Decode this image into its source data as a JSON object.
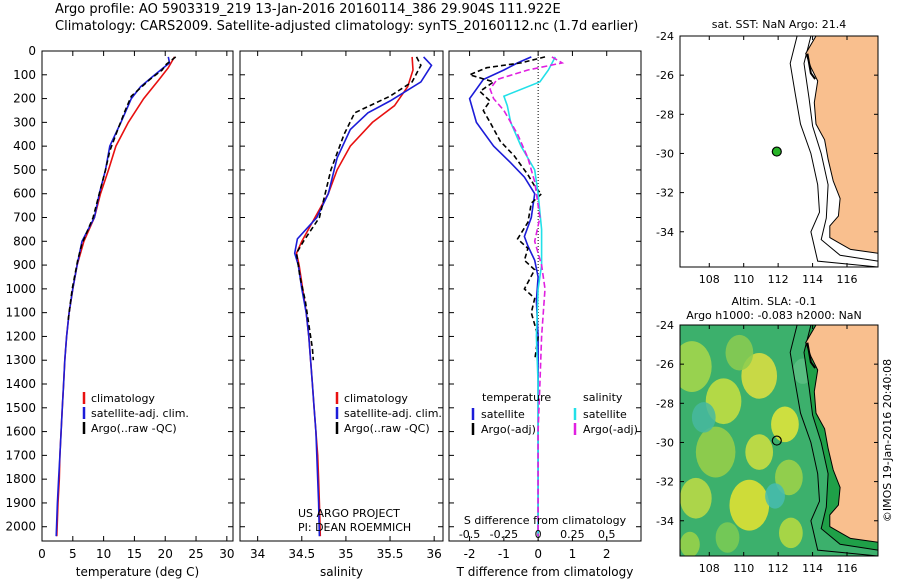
{
  "header": {
    "line1": "Argo profile: AO 5903319_219 13-Jan-2016 20160114_386 29.904S 111.922E",
    "line2": "Climatology: CARS2009. Satellite-adjusted climatology: synTS_20160112.nc (1.7d earlier)"
  },
  "colors": {
    "climatology": "#e81010",
    "satellite": "#1c1cd8",
    "argo": "#000000",
    "sal_sat": "#22e0e8",
    "sal_argo": "#e020e0",
    "land": "#f9bf8e",
    "float": "#28b428"
  },
  "chart_data": [
    {
      "type": "line",
      "panel": "temperature",
      "xlabel": "temperature (deg C)",
      "xlim": [
        0,
        31
      ],
      "xticks": [
        0,
        5,
        10,
        15,
        20,
        25,
        30
      ],
      "ylim": [
        0,
        2060
      ],
      "yticks": [
        0,
        100,
        200,
        300,
        400,
        500,
        600,
        700,
        800,
        900,
        1000,
        1100,
        1200,
        1300,
        1400,
        1500,
        1600,
        1700,
        1800,
        1900,
        2000
      ],
      "legend": [
        "climatology",
        "satellite-adj. clim.",
        "Argo(..raw -QC)"
      ],
      "series": [
        {
          "name": "climatology",
          "color": "#e81010",
          "dash": "",
          "points": [
            [
              21.5,
              25
            ],
            [
              20.5,
              70
            ],
            [
              19,
              120
            ],
            [
              16.5,
              200
            ],
            [
              14,
              300
            ],
            [
              12,
              400
            ],
            [
              10.8,
              500
            ],
            [
              9.5,
              600
            ],
            [
              8.5,
              700
            ],
            [
              6.8,
              800
            ],
            [
              5.7,
              900
            ],
            [
              5,
              1000
            ],
            [
              4.4,
              1100
            ],
            [
              4,
              1200
            ],
            [
              3.7,
              1300
            ],
            [
              3.5,
              1400
            ],
            [
              3.3,
              1500
            ],
            [
              3.1,
              1600
            ],
            [
              2.9,
              1700
            ],
            [
              2.8,
              1800
            ],
            [
              2.6,
              1900
            ],
            [
              2.4,
              2040
            ]
          ]
        },
        {
          "name": "satellite-adj. clim.",
          "color": "#1c1cd8",
          "dash": "",
          "points": [
            [
              20.5,
              25
            ],
            [
              20.7,
              50
            ],
            [
              18.3,
              100
            ],
            [
              16,
              150
            ],
            [
              14.5,
              200
            ],
            [
              12.8,
              300
            ],
            [
              11,
              400
            ],
            [
              10.3,
              500
            ],
            [
              9.3,
              600
            ],
            [
              8.5,
              700
            ],
            [
              6.5,
              800
            ],
            [
              5.7,
              900
            ],
            [
              5,
              1000
            ],
            [
              4.4,
              1100
            ],
            [
              4,
              1200
            ],
            [
              3.7,
              1300
            ],
            [
              3.5,
              1400
            ],
            [
              3.3,
              1500
            ],
            [
              3.1,
              1600
            ],
            [
              2.9,
              1700
            ],
            [
              2.7,
              1800
            ],
            [
              2.5,
              1900
            ],
            [
              2.3,
              2040
            ]
          ]
        },
        {
          "name": "Argo(..raw -QC)",
          "color": "#000000",
          "dash": "5,3",
          "points": [
            [
              21.7,
              25
            ],
            [
              20.2,
              55
            ],
            [
              19.5,
              80
            ],
            [
              17.5,
              120
            ],
            [
              14.5,
              190
            ],
            [
              13.5,
              250
            ],
            [
              12.3,
              330
            ],
            [
              11,
              420
            ],
            [
              10.3,
              500
            ],
            [
              9.3,
              600
            ],
            [
              8.3,
              700
            ],
            [
              6.5,
              810
            ],
            [
              5.8,
              880
            ],
            [
              4.9,
              1000
            ],
            [
              4.2,
              1140
            ]
          ]
        }
      ]
    },
    {
      "type": "line",
      "panel": "salinity",
      "xlabel": "salinity",
      "xlim": [
        33.8,
        36.1
      ],
      "xticks": [
        34,
        34.5,
        35,
        35.5,
        36
      ],
      "ylim": [
        0,
        2060
      ],
      "legend": [
        "climatology",
        "satellite-adj. clim.",
        "Argo(..raw -QC)"
      ],
      "annotation": [
        "US ARGO PROJECT",
        "PI: DEAN ROEMMICH"
      ],
      "series": [
        {
          "name": "climatology",
          "color": "#e81010",
          "dash": "",
          "points": [
            [
              35.75,
              25
            ],
            [
              35.76,
              80
            ],
            [
              35.7,
              150
            ],
            [
              35.55,
              230
            ],
            [
              35.3,
              300
            ],
            [
              35.05,
              400
            ],
            [
              34.9,
              500
            ],
            [
              34.8,
              600
            ],
            [
              34.65,
              700
            ],
            [
              34.5,
              800
            ],
            [
              34.44,
              850
            ],
            [
              34.47,
              900
            ],
            [
              34.51,
              1000
            ],
            [
              34.55,
              1100
            ],
            [
              34.58,
              1200
            ],
            [
              34.6,
              1300
            ],
            [
              34.62,
              1400
            ],
            [
              34.64,
              1500
            ],
            [
              34.66,
              1600
            ],
            [
              34.68,
              1700
            ],
            [
              34.69,
              1800
            ],
            [
              34.7,
              1900
            ],
            [
              34.71,
              2040
            ]
          ]
        },
        {
          "name": "satellite-adj. clim.",
          "color": "#1c1cd8",
          "dash": "",
          "points": [
            [
              35.88,
              25
            ],
            [
              35.97,
              60
            ],
            [
              35.85,
              130
            ],
            [
              35.5,
              210
            ],
            [
              35.25,
              260
            ],
            [
              35.05,
              330
            ],
            [
              34.9,
              450
            ],
            [
              34.8,
              600
            ],
            [
              34.67,
              700
            ],
            [
              34.45,
              790
            ],
            [
              34.42,
              850
            ],
            [
              34.46,
              900
            ],
            [
              34.5,
              1000
            ],
            [
              34.55,
              1100
            ],
            [
              34.58,
              1200
            ],
            [
              34.6,
              1300
            ],
            [
              34.62,
              1400
            ],
            [
              34.64,
              1500
            ],
            [
              34.66,
              1600
            ],
            [
              34.67,
              1700
            ],
            [
              34.68,
              1800
            ],
            [
              34.69,
              1900
            ],
            [
              34.7,
              2040
            ]
          ]
        },
        {
          "name": "Argo(..raw -QC)",
          "color": "#000000",
          "dash": "5,3",
          "points": [
            [
              35.8,
              25
            ],
            [
              35.85,
              60
            ],
            [
              35.75,
              130
            ],
            [
              35.5,
              190
            ],
            [
              35.1,
              260
            ],
            [
              34.98,
              350
            ],
            [
              34.88,
              450
            ],
            [
              34.83,
              500
            ],
            [
              34.7,
              700
            ],
            [
              34.52,
              800
            ],
            [
              34.44,
              850
            ],
            [
              34.48,
              950
            ],
            [
              34.54,
              1050
            ],
            [
              34.58,
              1150
            ],
            [
              34.62,
              1250
            ],
            [
              34.63,
              1300
            ]
          ]
        }
      ]
    },
    {
      "type": "line",
      "panel": "difference",
      "xlabel": "T difference from climatology",
      "xlabel_top": "S difference from climatology",
      "xlim": [
        -2.6,
        3.0
      ],
      "xticks": [
        -2,
        -1,
        0,
        1,
        2
      ],
      "xticks_top": [
        {
          "v": -2,
          "label": "-0.5"
        },
        {
          "v": -1,
          "label": "-0.25"
        },
        {
          "v": 0,
          "label": "0"
        },
        {
          "v": 1,
          "label": "0.25"
        },
        {
          "v": 2,
          "label": "0.5"
        }
      ],
      "ylim": [
        0,
        2060
      ],
      "legend_left": {
        "title": "temperature",
        "items": [
          "satellite",
          "Argo(-adj)"
        ]
      },
      "legend_right": {
        "title": "salinity",
        "items": [
          "satellite",
          "Argo(-adj)"
        ]
      },
      "series": [
        {
          "name": "T satellite",
          "color": "#1c1cd8",
          "dash": "",
          "points": [
            [
              -0.2,
              25
            ],
            [
              -0.6,
              50
            ],
            [
              -1,
              80
            ],
            [
              -1.6,
              120
            ],
            [
              -2,
              200
            ],
            [
              -1.8,
              300
            ],
            [
              -1.3,
              400
            ],
            [
              -0.8,
              470
            ],
            [
              -0.4,
              530
            ],
            [
              -0.1,
              600
            ],
            [
              -0.2,
              700
            ],
            [
              -0.4,
              780
            ],
            [
              -0.3,
              820
            ],
            [
              -0.1,
              880
            ],
            [
              0,
              950
            ],
            [
              -0.05,
              1050
            ],
            [
              0,
              1200
            ],
            [
              0,
              1400
            ],
            [
              0,
              1600
            ],
            [
              0,
              1800
            ],
            [
              0,
              2040
            ]
          ]
        },
        {
          "name": "T Argo(-adj)",
          "color": "#000000",
          "dash": "5,3",
          "points": [
            [
              0.2,
              25
            ],
            [
              -0.5,
              50
            ],
            [
              -1.5,
              70
            ],
            [
              -2,
              100
            ],
            [
              -1.3,
              130
            ],
            [
              -1.7,
              170
            ],
            [
              -1.4,
              210
            ],
            [
              -1.6,
              250
            ],
            [
              -1.4,
              300
            ],
            [
              -1.1,
              380
            ],
            [
              -0.7,
              440
            ],
            [
              -0.3,
              520
            ],
            [
              -0.05,
              580
            ],
            [
              0.1,
              600
            ],
            [
              -0.2,
              640
            ],
            [
              -0.3,
              720
            ],
            [
              -0.6,
              790
            ],
            [
              -0.3,
              830
            ],
            [
              -0.4,
              880
            ],
            [
              -0.1,
              920
            ],
            [
              -0.4,
              1000
            ],
            [
              -0.1,
              1040
            ],
            [
              -0.2,
              1100
            ],
            [
              0,
              1200
            ],
            [
              -0.1,
              1300
            ]
          ]
        },
        {
          "name": "S satellite",
          "color": "#22e0e8",
          "dash": "",
          "points": [
            [
              0.5,
              25
            ],
            [
              0.3,
              80
            ],
            [
              0.05,
              130
            ],
            [
              -1,
              190
            ],
            [
              -0.9,
              230
            ],
            [
              -0.8,
              300
            ],
            [
              -0.5,
              400
            ],
            [
              -0.1,
              500
            ],
            [
              0,
              600
            ],
            [
              0.1,
              750
            ],
            [
              0.1,
              900
            ],
            [
              0,
              1000
            ],
            [
              -0.05,
              1200
            ],
            [
              0,
              1400
            ],
            [
              0,
              1600
            ],
            [
              0,
              1800
            ],
            [
              0,
              2040
            ]
          ]
        },
        {
          "name": "S Argo(-adj)",
          "color": "#e020e0",
          "dash": "6,3",
          "points": [
            [
              0.4,
              25
            ],
            [
              0.7,
              50
            ],
            [
              -0.3,
              80
            ],
            [
              -1.2,
              120
            ],
            [
              -1.4,
              160
            ],
            [
              -1.3,
              200
            ],
            [
              -1,
              250
            ],
            [
              -0.6,
              350
            ],
            [
              -0.3,
              450
            ],
            [
              -0.1,
              550
            ],
            [
              0.05,
              700
            ],
            [
              -0.1,
              800
            ],
            [
              0.1,
              900
            ],
            [
              0.2,
              1000
            ],
            [
              0.1,
              1200
            ],
            [
              0.05,
              1400
            ],
            [
              0,
              1600
            ],
            [
              0,
              1800
            ],
            [
              0,
              2040
            ]
          ]
        }
      ]
    },
    {
      "type": "map",
      "panel": "sst",
      "title": "sat. SST: NaN Argo: 21.4",
      "xlim": [
        106.3,
        117.8
      ],
      "ylim": [
        -35.8,
        -24
      ],
      "xticks": [
        108,
        110,
        112,
        114,
        116
      ],
      "yticks": [
        -24,
        -26,
        -28,
        -30,
        -32,
        -34
      ],
      "float": {
        "lon": 111.922,
        "lat": -29.904
      }
    },
    {
      "type": "map",
      "panel": "sla",
      "title_lines": [
        "Altim. SLA: -0.1",
        "Argo h1000: -0.083 h2000: NaN"
      ],
      "xlim": [
        106.3,
        117.8
      ],
      "ylim": [
        -35.8,
        -24
      ],
      "xticks": [
        108,
        110,
        112,
        114,
        116
      ],
      "yticks": [
        -24,
        -26,
        -28,
        -30,
        -32,
        -34
      ],
      "float": {
        "lon": 111.922,
        "lat": -29.904
      },
      "side_label": "©IMOS 19-Jan-2016 20:40:08"
    }
  ]
}
